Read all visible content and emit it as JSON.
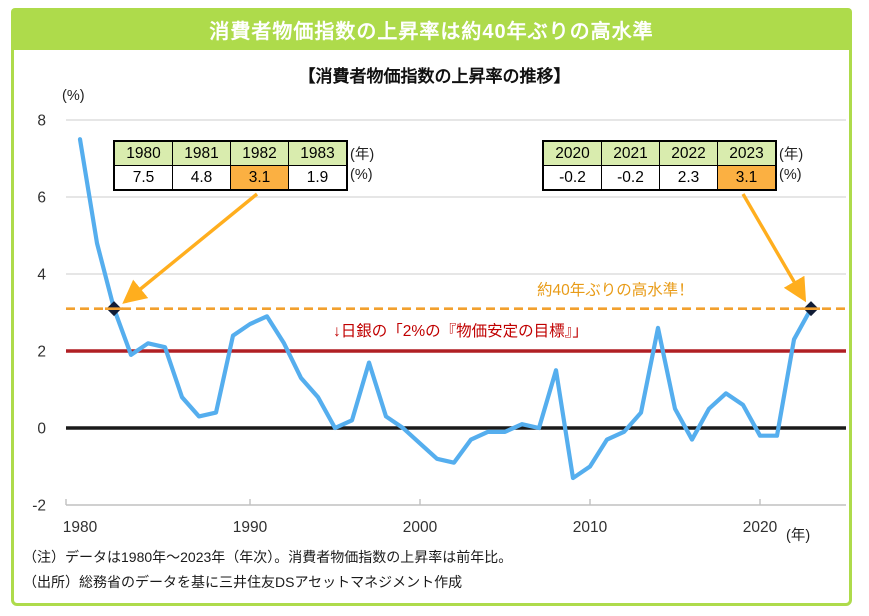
{
  "header": {
    "title": "消費者物価指数の上昇率は約40年ぶりの高水準"
  },
  "subtitle": "【消費者物価指数の上昇率の推移】",
  "axis": {
    "y_unit_label": "(%)",
    "x_unit_label": "(年)"
  },
  "tables": {
    "left": {
      "years": [
        "1980",
        "1981",
        "1982",
        "1983"
      ],
      "values": [
        "7.5",
        "4.8",
        "3.1",
        "1.9"
      ],
      "highlight_index": 2,
      "unit_year": "(年)",
      "unit_pct": "(%)"
    },
    "right": {
      "years": [
        "2020",
        "2021",
        "2022",
        "2023"
      ],
      "values": [
        "-0.2",
        "-0.2",
        "2.3",
        "3.1"
      ],
      "highlight_index": 3,
      "unit_year": "(年)",
      "unit_pct": "(%)"
    }
  },
  "annotations": {
    "high_level": "約40年ぶりの高水準！",
    "boj_target": "↓日銀の「2%の『物価安定の目標』」"
  },
  "notes": [
    "（注）データは1980年～2023年（年次）。消費者物価指数の上昇率は前年比。",
    "（出所）総務省のデータを基に三井住友DSアセットマネジメント作成"
  ],
  "colors": {
    "frame_green": "#aedb4b",
    "title_bar_green": "#aedb4b",
    "table_header_green": "#d9ecae",
    "highlight_orange": "#fbb042",
    "line_blue": "#55aeee",
    "dashed_orange": "#f2a02e",
    "arrow_orange": "#ffae1e",
    "target_red": "#b01f24",
    "zero_black": "#1a1a1a",
    "annotation_orange": "#e89b17",
    "annotation_red": "#c00000",
    "marker_navy": "#101c36",
    "grid_gray": "#d8d8d8",
    "axis_gray": "#c0c0c0"
  },
  "chart_data": {
    "type": "line",
    "title": "【消費者物価指数の上昇率の推移】",
    "xlabel": "(年)",
    "ylabel": "(%)",
    "ylim": [
      -2,
      8
    ],
    "y_ticks": [
      8,
      6,
      4,
      2,
      0,
      -2
    ],
    "x_ticks": [
      1980,
      1990,
      2000,
      2010,
      2020
    ],
    "grid": true,
    "legend": false,
    "x": [
      1980,
      1981,
      1982,
      1983,
      1984,
      1985,
      1986,
      1987,
      1988,
      1989,
      1990,
      1991,
      1992,
      1993,
      1994,
      1995,
      1996,
      1997,
      1998,
      1999,
      2000,
      2001,
      2002,
      2003,
      2004,
      2005,
      2006,
      2007,
      2008,
      2009,
      2010,
      2011,
      2012,
      2013,
      2014,
      2015,
      2016,
      2017,
      2018,
      2019,
      2020,
      2021,
      2022,
      2023
    ],
    "series": [
      {
        "name": "消費者物価指数の上昇率（前年比）",
        "values": [
          7.5,
          4.8,
          3.1,
          1.9,
          2.2,
          2.1,
          0.8,
          0.3,
          0.4,
          2.4,
          2.7,
          2.9,
          2.2,
          1.3,
          0.8,
          0.0,
          0.2,
          1.7,
          0.3,
          0.0,
          -0.4,
          -0.8,
          -0.9,
          -0.3,
          -0.1,
          -0.1,
          0.1,
          0.0,
          1.5,
          -1.3,
          -1.0,
          -0.3,
          -0.1,
          0.4,
          2.6,
          0.5,
          -0.3,
          0.5,
          0.9,
          0.6,
          -0.2,
          -0.2,
          2.3,
          3.1
        ]
      }
    ],
    "reference_lines": [
      {
        "value": 3.1,
        "style": "dashed",
        "color": "#f2a02e",
        "label": "約40年ぶりの高水準！"
      },
      {
        "value": 2.0,
        "style": "solid",
        "color": "#b01f24",
        "label": "↓日銀の「2%の『物価安定の目標』」"
      },
      {
        "value": 0.0,
        "style": "solid",
        "color": "#1a1a1a",
        "label": ""
      }
    ],
    "markers": [
      {
        "x": 1982,
        "y": 3.1
      },
      {
        "x": 2023,
        "y": 3.1
      }
    ]
  }
}
